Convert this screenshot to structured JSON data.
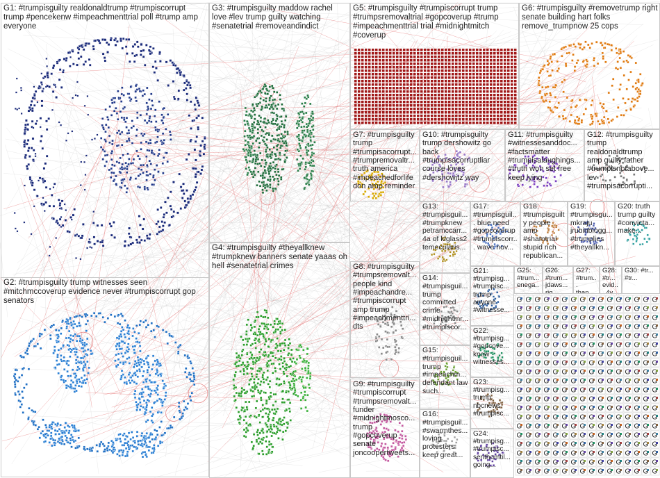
{
  "groups": [
    {
      "id": "G1",
      "label": "G1: #trumpisguilty realdonaldtrump #trumpiscorrupt trump #pencekenw #impeachmenttrial poll #trump amp everyone",
      "color": "#1a2a7a"
    },
    {
      "id": "G2",
      "label": "G2: #trumpisguilty trump witnesses seen #mitchmccoverup evidence never #trumpiscorrupt gop senators",
      "color": "#1f6fc4"
    },
    {
      "id": "G3",
      "label": "G3: #trumpisguilty maddow rachel love #lev trump guilty watching #senatetrial #removeandindict",
      "color": "#1e6b3a"
    },
    {
      "id": "G4",
      "label": "G4: #trumpisguilty #theyallknew #trumpknew banners senate yaaas oh hell #senatetrial crimes",
      "color": "#2a9d2a"
    },
    {
      "id": "G5",
      "label": "G5: #trumpisguilty #trumpiscorrupt trump #trumpsremovaltrial #gopcoverup #trump #impeachmenttrial trial #midnightmitch #coverup",
      "color": "#a01818"
    },
    {
      "id": "G6",
      "label": "G6: #trumpisguilty #removetrump right senate building hart folks remove_trumpnow 25 cops",
      "color": "#e07a10"
    },
    {
      "id": "G7",
      "label": "G7: #trumpisguilty trump #trumpisacorrupt... #trumpremovaltr... truth america #impeachedforlife don amp reminder",
      "color": "#d8a800"
    },
    {
      "id": "G8",
      "label": "G8: #trumpisguilty #trumpsremovalt... people kind #impeachandre... #trumpiscorrupt amp trump #impeachmenttri... dts",
      "color": "#8a8a8a"
    },
    {
      "id": "G9",
      "label": "G9: #trumpisguilty #trumpiscorrupt #trumpsremovalt... funder #midnightmosco... trump #gopcoverup senate joncoopertweets...",
      "color": "#c45aa0"
    },
    {
      "id": "G10",
      "label": "G10: #trumpisguilty trump dershowitz go back #trumpisacorruptliar course loves #dershowitz way",
      "color": "#9a7ac8"
    },
    {
      "id": "G11",
      "label": "G11: #trumpisguilty #witnessesanddoc... #factsmatter #trumpisalaughings... #truth won set free keep lying",
      "color": "#7a40c0"
    },
    {
      "id": "G12",
      "label": "G12: #trumpisguilty trump realdonaldtrump amp guilty father #trumpisnotabove... lev #trumpisacorrupti...",
      "color": "#7a7a7a"
    },
    {
      "id": "G13",
      "label": "G13: #trumpisguil... #trumpknew petramccarr... 4a of klglass2 temecularis...",
      "color": "#b09020"
    },
    {
      "id": "G14",
      "label": "G14: #trumpisguil... trump committed crime #midnightmr... #trumpiscor...",
      "color": "#888888"
    },
    {
      "id": "G15",
      "label": "G15: #trumpisguil... trump #impeachm... defendant law such...",
      "color": "#6aa030"
    },
    {
      "id": "G16",
      "label": "G16: #trumpisguil... #swarmthes... loving protesters keep great...",
      "color": "#a0a0a0"
    },
    {
      "id": "G17",
      "label": "G17: #trumpisguil... blue need #gopcoverup #trumpiscorr... wave nov...",
      "color": "#4a70c0"
    },
    {
      "id": "G18",
      "label": "G18: #trumpisguilty people amp #shamtrial stupid rich republican...",
      "color": "#c08040"
    },
    {
      "id": "G19",
      "label": "G19: #trumpisgu... mkraju jrubinblogg... #trumplies #theyallkn...",
      "color": "#5060b0"
    },
    {
      "id": "G20",
      "label": "G20: truth trump guilty #convicta... make...",
      "color": "#30a0a0"
    },
    {
      "id": "G21",
      "label": "G21: #trumpisg... #trumpisc... trump anyone #witnesse...",
      "color": "#3060a0"
    },
    {
      "id": "G22",
      "label": "G22: #trumpisg... #gopcove... know witnesses...",
      "color": "#209060"
    },
    {
      "id": "G23",
      "label": "G23: #trumpisg... trump nbcnews #trumpisc...",
      "color": "#806040"
    },
    {
      "id": "G24",
      "label": "G24: #trumpisg... #trumpisc... senthomtil... going...",
      "color": "#6040a0"
    },
    {
      "id": "G25",
      "label": "G25: #trum... enega... #trum... ...",
      "color": "#a04040"
    },
    {
      "id": "G26",
      "label": "G26: #trum... jdaws... rig... ...",
      "color": "#4080a0"
    },
    {
      "id": "G27",
      "label": "G27: #trum... than... ...",
      "color": "#80a040"
    },
    {
      "id": "G28",
      "label": "G28: #tr... evid... 4y...",
      "color": "#a08040"
    },
    {
      "id": "G30",
      "label": "G30: #tr... #tr...",
      "color": "#4040a0"
    }
  ],
  "grid_label": "G"
}
